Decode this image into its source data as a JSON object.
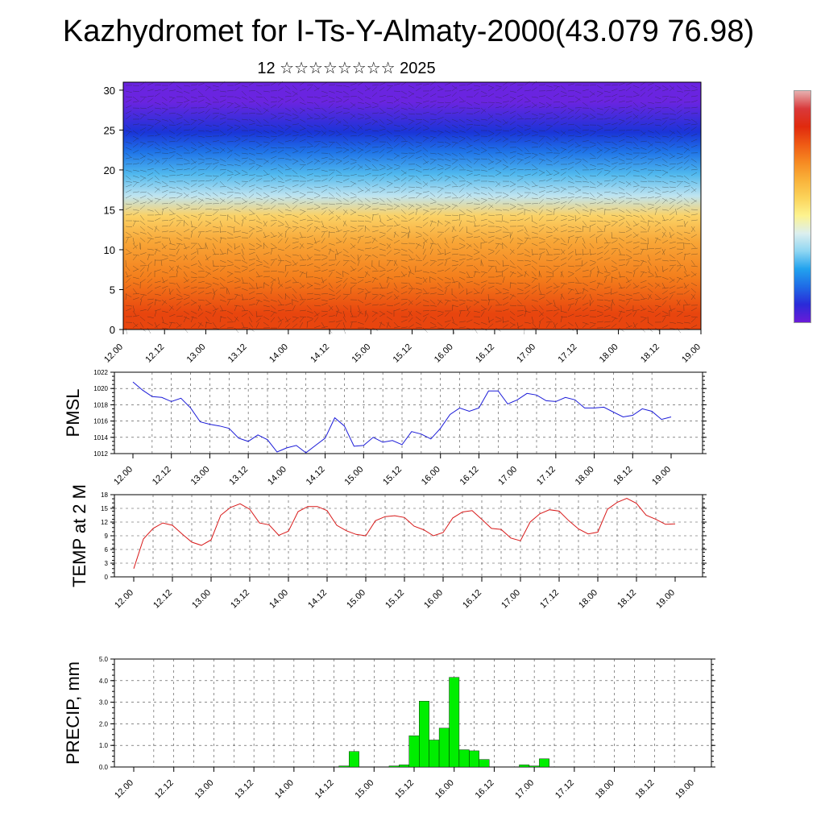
{
  "title": "Kazhydromet for I-Ts-Y-Almaty-2000(43.079 76.98)",
  "subtitle": "12 ☆☆☆☆☆☆☆☆ 2025",
  "time_ticks": [
    "12.00",
    "12.12",
    "13.00",
    "13.12",
    "14.00",
    "14.12",
    "15.00",
    "15.12",
    "16.00",
    "16.12",
    "17.00",
    "17.12",
    "18.00",
    "18.12",
    "19.00"
  ],
  "colorbar_colors": [
    "#6a1bd8",
    "#2a2bd8",
    "#1f6be6",
    "#22a2ee",
    "#8fd6f2",
    "#dcefef",
    "#fdf38f",
    "#fbd35a",
    "#f9b23a",
    "#f68a22",
    "#ef5a14",
    "#e02a0e",
    "#d9393a",
    "#e6b0b0"
  ],
  "chart_data": [
    {
      "type": "heatmap",
      "title": "",
      "ylabel": "",
      "y_ticks": [
        "0",
        "5",
        "10",
        "15",
        "20",
        "25",
        "30"
      ],
      "ylim": [
        0,
        31
      ],
      "note_bands": [
        {
          "from": 0,
          "to": 4,
          "color": "#e8450e"
        },
        {
          "from": 4,
          "to": 9,
          "color": "#f47e1c"
        },
        {
          "from": 9,
          "to": 13,
          "color": "#f8a637"
        },
        {
          "from": 13,
          "to": 15.5,
          "color": "#fbd266"
        },
        {
          "from": 15.5,
          "to": 18,
          "color": "#bfe4f0"
        },
        {
          "from": 18,
          "to": 21,
          "color": "#4fb8ee"
        },
        {
          "from": 21,
          "to": 23.5,
          "color": "#1f74e8"
        },
        {
          "from": 23.5,
          "to": 26,
          "color": "#1a34d8"
        },
        {
          "from": 26,
          "to": 31,
          "color": "#6a24e0"
        }
      ]
    },
    {
      "type": "line",
      "ylabel": "PMSL",
      "y_ticks": [
        "1012",
        "1014",
        "1016",
        "1018",
        "1020",
        "1022"
      ],
      "ylim": [
        1012,
        1022
      ],
      "color": "#1a1ad8",
      "x": [
        0,
        3,
        6,
        9,
        12,
        15,
        18,
        21,
        24,
        27,
        30,
        33,
        36,
        39,
        42,
        45,
        48,
        51,
        54,
        57,
        60,
        63,
        66,
        69,
        72,
        75,
        78,
        81,
        84,
        87,
        90,
        93,
        96,
        99,
        102,
        105,
        108,
        111,
        114,
        117,
        120,
        123,
        126,
        129,
        132,
        135,
        138,
        141,
        144,
        147,
        150,
        153,
        156,
        159,
        162,
        165,
        168
      ],
      "values": [
        1020.8,
        1019.8,
        1019.0,
        1018.9,
        1018.4,
        1018.8,
        1017.6,
        1015.9,
        1015.6,
        1015.4,
        1015.1,
        1013.9,
        1013.5,
        1014.3,
        1013.7,
        1012.2,
        1012.7,
        1013.0,
        1012.1,
        1013.0,
        1013.9,
        1016.4,
        1015.4,
        1012.9,
        1013.0,
        1014.0,
        1013.4,
        1013.6,
        1013.1,
        1014.7,
        1014.4,
        1013.8,
        1015.1,
        1016.8,
        1017.6,
        1017.2,
        1017.6,
        1019.7,
        1019.7,
        1018.1,
        1018.6,
        1019.4,
        1019.2,
        1018.5,
        1018.4,
        1018.9,
        1018.6,
        1017.6,
        1017.6,
        1017.7,
        1017.1,
        1016.5,
        1016.7,
        1017.5,
        1017.2,
        1016.2,
        1016.5
      ]
    },
    {
      "type": "line",
      "ylabel": "TEMP at 2 M",
      "y_ticks": [
        "0",
        "3",
        "6",
        "9",
        "12",
        "15",
        "18"
      ],
      "ylim": [
        0,
        18
      ],
      "color": "#d81a1a",
      "x": [
        0,
        3,
        6,
        9,
        12,
        15,
        18,
        21,
        24,
        27,
        30,
        33,
        36,
        39,
        42,
        45,
        48,
        51,
        54,
        57,
        60,
        63,
        66,
        69,
        72,
        75,
        78,
        81,
        84,
        87,
        90,
        93,
        96,
        99,
        102,
        105,
        108,
        111,
        114,
        117,
        120,
        123,
        126,
        129,
        132,
        135,
        138,
        141,
        144,
        147,
        150,
        153,
        156,
        159,
        162,
        165,
        168
      ],
      "values": [
        1.8,
        8.3,
        10.6,
        11.8,
        11.3,
        9.4,
        7.6,
        6.9,
        8.1,
        13.5,
        15.2,
        16.0,
        14.8,
        11.8,
        11.4,
        9.1,
        10.0,
        14.3,
        15.4,
        15.4,
        14.5,
        11.3,
        10.1,
        9.3,
        9.0,
        12.3,
        13.2,
        13.4,
        13.0,
        11.1,
        10.3,
        9.0,
        9.7,
        12.9,
        14.2,
        14.5,
        12.6,
        10.6,
        10.4,
        8.5,
        7.9,
        12.0,
        13.8,
        14.7,
        14.4,
        12.3,
        10.5,
        9.4,
        9.8,
        14.8,
        16.3,
        17.2,
        16.1,
        13.5,
        12.6,
        11.5,
        11.6
      ]
    },
    {
      "type": "bar",
      "ylabel": "PRECIP, mm",
      "y_ticks": [
        "0.0",
        "1.0",
        "2.0",
        "3.0",
        "4.0",
        "5.0"
      ],
      "ylim": [
        0,
        5
      ],
      "color": "#00ee00",
      "x": [
        63,
        66,
        78,
        81,
        84,
        87,
        90,
        93,
        96,
        99,
        102,
        105,
        108,
        117,
        120,
        123
      ],
      "values": [
        0.05,
        0.72,
        0.05,
        0.1,
        1.45,
        3.05,
        1.25,
        1.8,
        4.15,
        0.8,
        0.75,
        0.35,
        0.0,
        0.1,
        0.05,
        0.38
      ]
    }
  ]
}
